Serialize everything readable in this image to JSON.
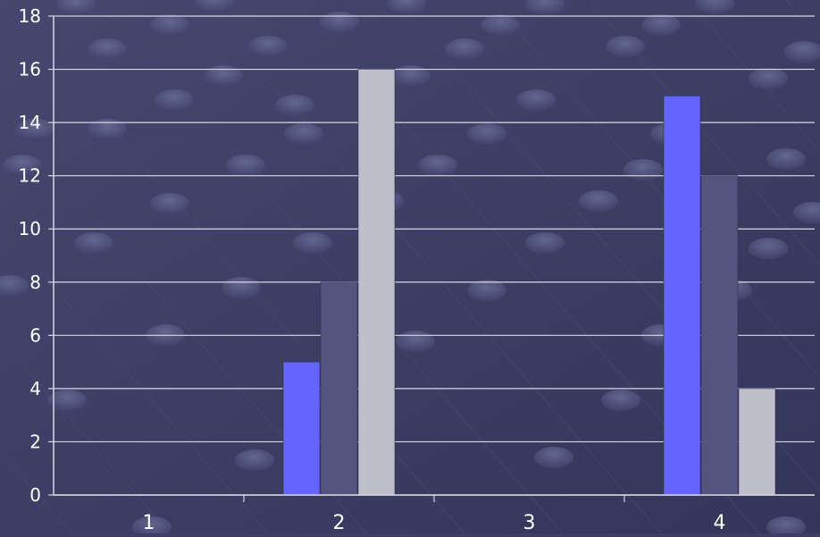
{
  "chart_data": {
    "type": "bar",
    "categories": [
      "1",
      "2",
      "3",
      "4"
    ],
    "series": [
      {
        "values": [
          0,
          5,
          0,
          15
        ]
      },
      {
        "values": [
          0,
          8,
          0,
          12
        ]
      },
      {
        "values": [
          0,
          16,
          0,
          4
        ]
      }
    ],
    "ylim": [
      0,
      18
    ],
    "yticks": [
      0,
      2,
      4,
      6,
      8,
      10,
      12,
      14,
      16,
      18
    ],
    "title": "",
    "xlabel": "",
    "ylabel": "",
    "grid": true,
    "colors": {
      "series": [
        "#6464ff",
        "#54557f",
        "#bfbfcc"
      ],
      "background": "#3d3f66",
      "gridline": "#d8d8e4",
      "text": "#ffffff"
    }
  }
}
